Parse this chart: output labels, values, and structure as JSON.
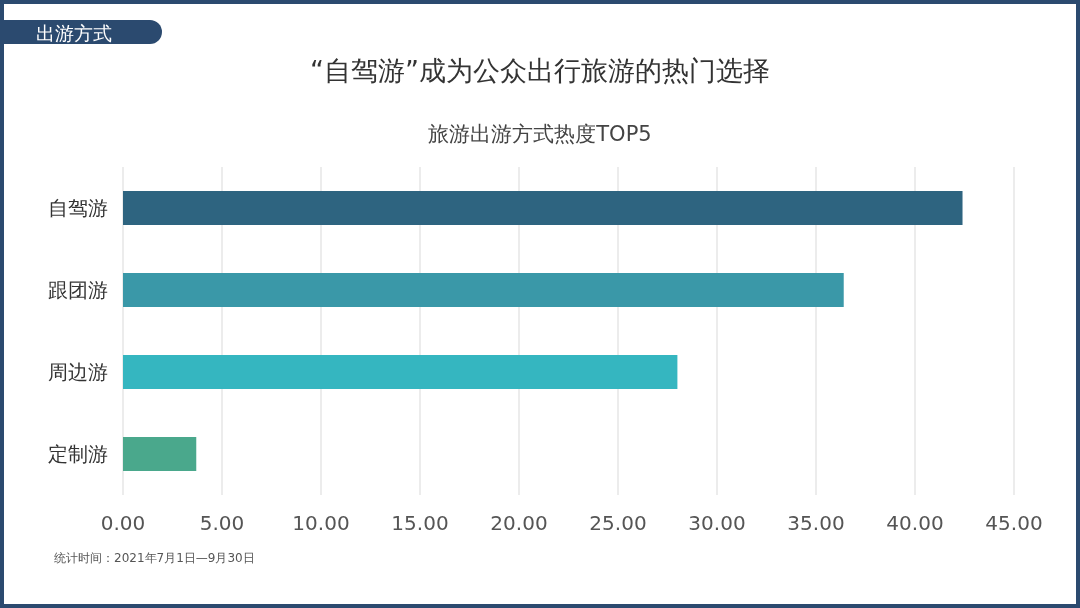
{
  "chart_data": {
    "type": "bar",
    "orientation": "horizontal",
    "title": "“自驾游”成为公众出行旅游的热门选择",
    "subtitle": "旅游出游方式热度TOP5",
    "categories": [
      "自驾游",
      "跟团游",
      "周边游",
      "定制游"
    ],
    "values": [
      42.4,
      36.4,
      28.0,
      3.7
    ],
    "colors": [
      "#2e6480",
      "#3a98a8",
      "#35b6c0",
      "#4aa88c"
    ],
    "xlim": [
      0,
      45
    ],
    "xticks": [
      {
        "value": 0,
        "label": "0.00"
      },
      {
        "value": 5,
        "label": "5.00"
      },
      {
        "value": 10,
        "label": "10.00"
      },
      {
        "value": 15,
        "label": "15.00"
      },
      {
        "value": 20,
        "label": "20.00"
      },
      {
        "value": 25,
        "label": "25.00"
      },
      {
        "value": 30,
        "label": "30.00"
      },
      {
        "value": 35,
        "label": "35.00"
      },
      {
        "value": 40,
        "label": "40.00"
      },
      {
        "value": 45,
        "label": "45.00"
      }
    ],
    "grid": "x",
    "annotations": [
      "出游方式",
      "统计时间：2021年7月1日—9月30日"
    ]
  }
}
